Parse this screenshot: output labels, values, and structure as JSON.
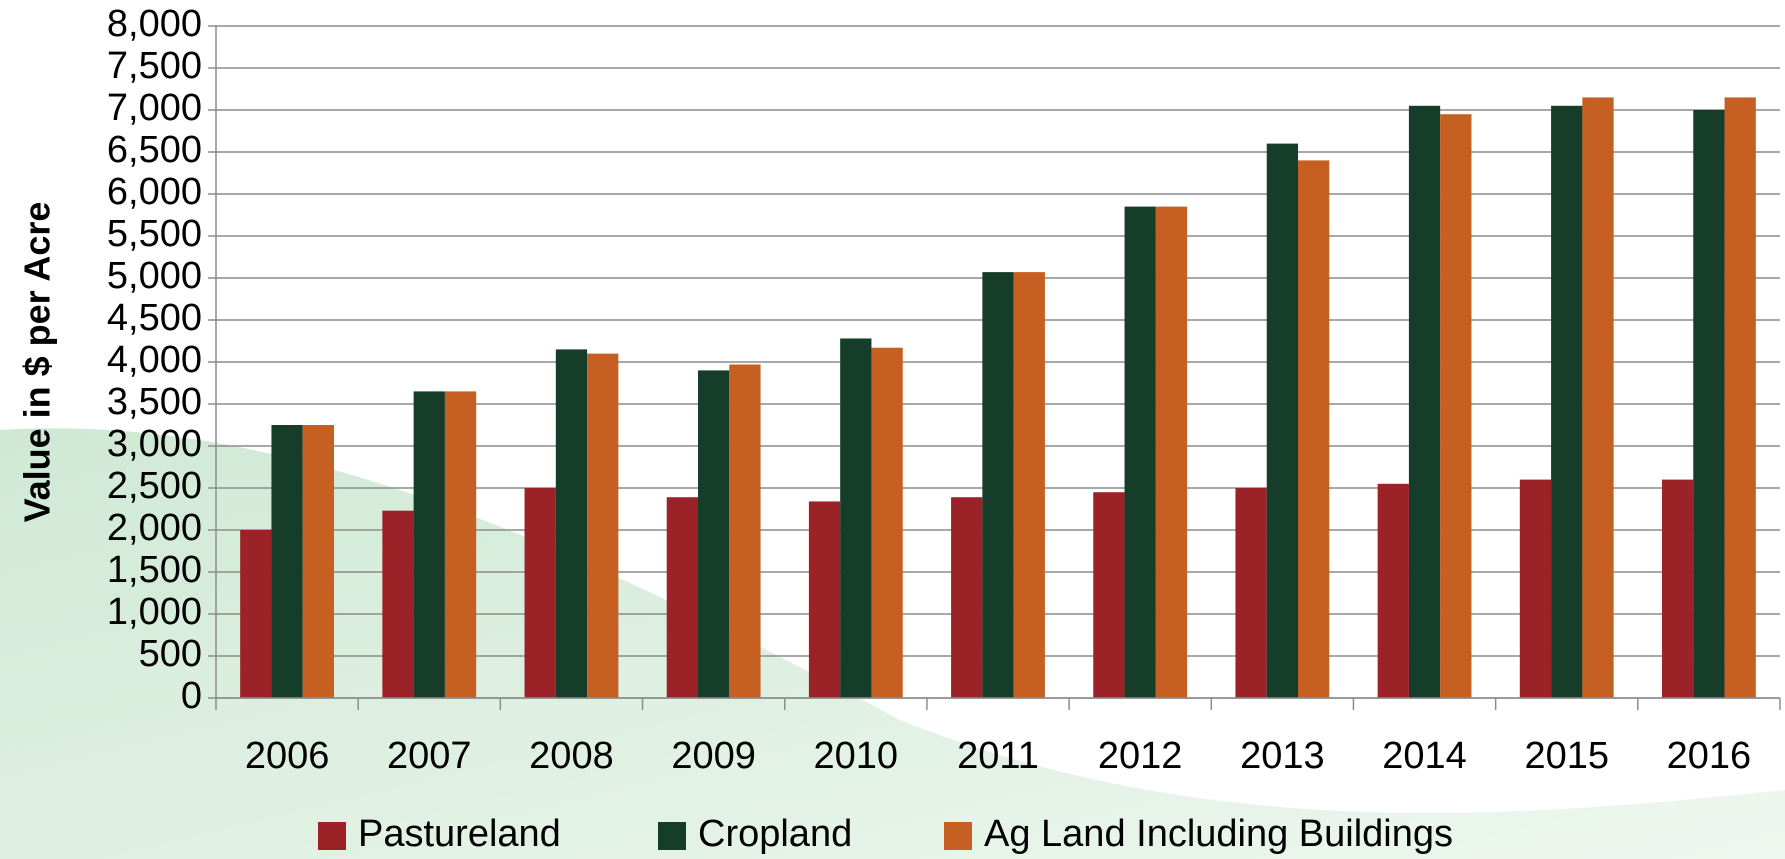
{
  "chart_data": {
    "type": "bar",
    "y_axis_label": "Value in $ per Acre",
    "categories": [
      "2006",
      "2007",
      "2008",
      "2009",
      "2010",
      "2011",
      "2012",
      "2013",
      "2014",
      "2015",
      "2016"
    ],
    "series": [
      {
        "name": "Pastureland",
        "color": "#9b2226",
        "values": [
          2000,
          2230,
          2500,
          2390,
          2340,
          2390,
          2450,
          2500,
          2550,
          2600,
          2600
        ]
      },
      {
        "name": "Cropland",
        "color": "#163d2a",
        "values": [
          3250,
          3650,
          4150,
          3900,
          4280,
          5070,
          5850,
          6600,
          7050,
          7050,
          7000
        ]
      },
      {
        "name": "Ag Land Including Buildings",
        "color": "#c55f22",
        "values": [
          3250,
          3650,
          4100,
          3970,
          4170,
          5070,
          5850,
          6400,
          6950,
          7150,
          7150
        ]
      }
    ],
    "ylim": [
      0,
      8000
    ],
    "yticks": [
      0,
      500,
      {
        "value": 1000,
        "label": "1,000"
      },
      {
        "value": 1500,
        "label": "1,500"
      },
      {
        "value": 2000,
        "label": "2,000"
      },
      {
        "value": 2500,
        "label": "2,500"
      },
      {
        "value": 3000,
        "label": "3,000"
      },
      {
        "value": 3500,
        "label": "3,500"
      },
      {
        "value": 4000,
        "label": "4,000"
      },
      {
        "value": 4500,
        "label": "4,500"
      },
      {
        "value": 5000,
        "label": "5,000"
      },
      {
        "value": 5500,
        "label": "5,500"
      },
      {
        "value": 6000,
        "label": "6,000"
      },
      {
        "value": 6500,
        "label": "6,500"
      },
      {
        "value": 7000,
        "label": "7,000"
      },
      {
        "value": 7500,
        "label": "7,500"
      },
      {
        "value": 8000,
        "label": "8,000"
      }
    ],
    "grid": true
  }
}
